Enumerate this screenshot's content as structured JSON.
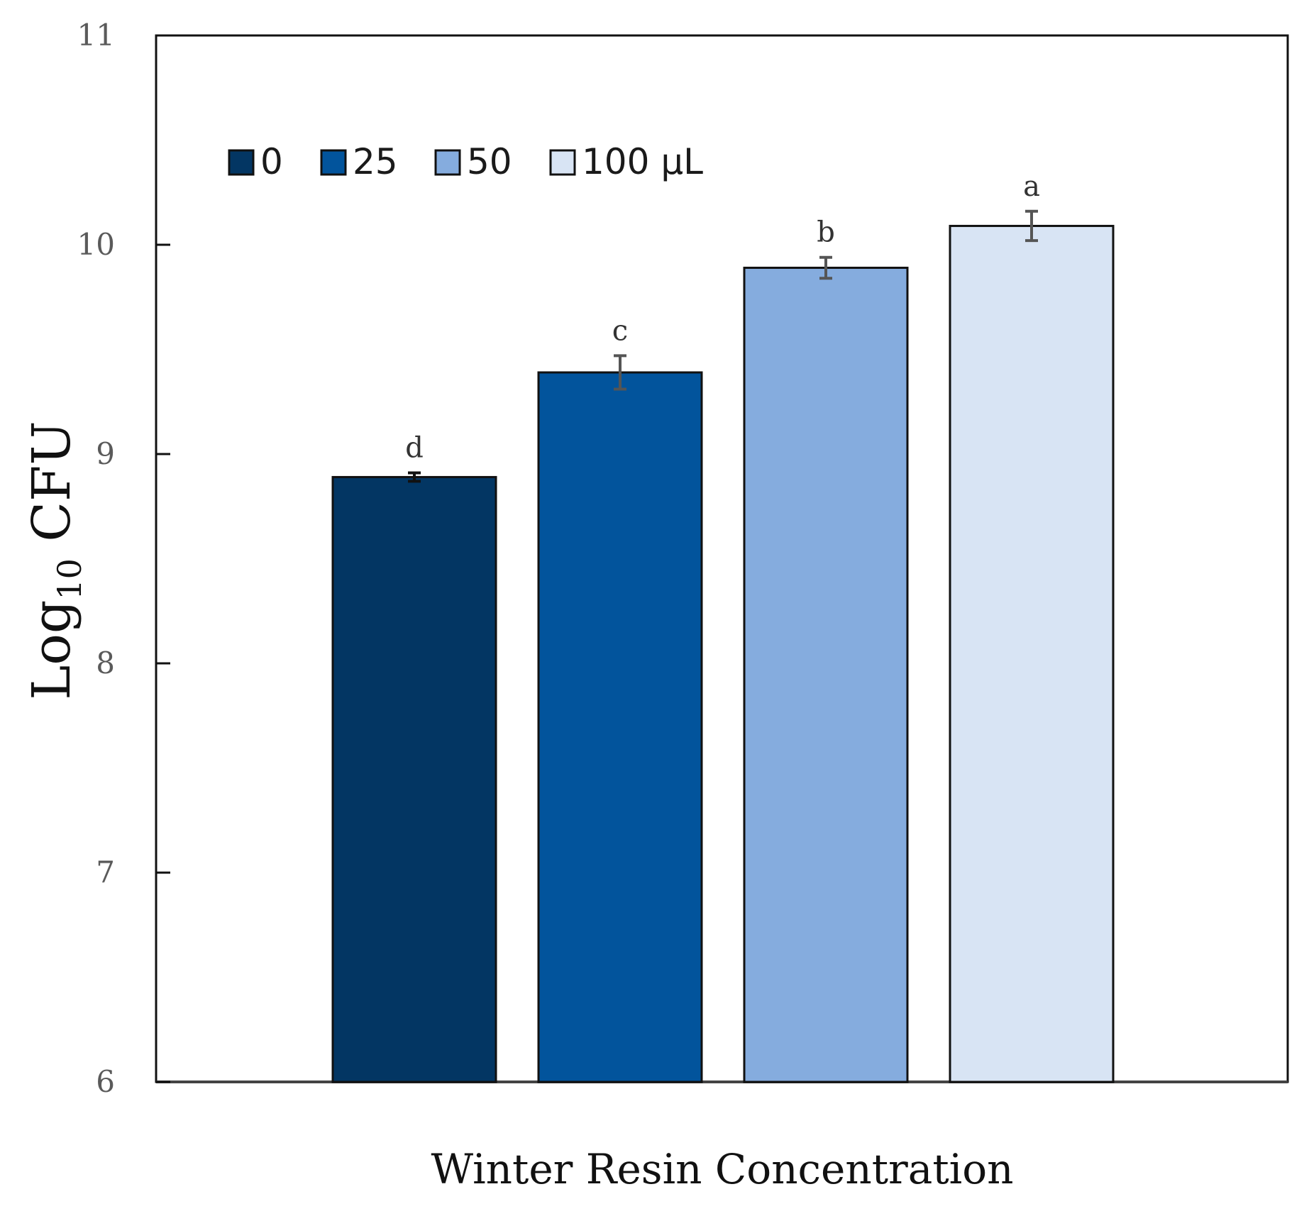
{
  "chart_data": {
    "type": "bar",
    "title": "",
    "xlabel": "Winter Resin Concentration",
    "ylabel": {
      "main": "Log",
      "subscript": "10",
      "suffix": " CFU"
    },
    "ylim": [
      6,
      11
    ],
    "yticks": [
      6,
      7,
      8,
      9,
      10,
      11
    ],
    "categories": [
      "0",
      "25",
      "50",
      "100"
    ],
    "values": [
      8.89,
      9.39,
      9.89,
      10.09
    ],
    "errors": [
      0.02,
      0.08,
      0.05,
      0.07
    ],
    "significance": [
      "d",
      "c",
      "b",
      "a"
    ],
    "colors": [
      "#033663",
      "#02549c",
      "#85acde",
      "#d8e4f4"
    ],
    "legend": {
      "placement": "top-left",
      "entries": [
        {
          "label": "0",
          "color": "#033663"
        },
        {
          "label": "25",
          "color": "#02549c"
        },
        {
          "label": "50",
          "color": "#85acde"
        },
        {
          "label": "100 µL",
          "color": "#d8e4f4"
        }
      ]
    },
    "grid": false
  }
}
